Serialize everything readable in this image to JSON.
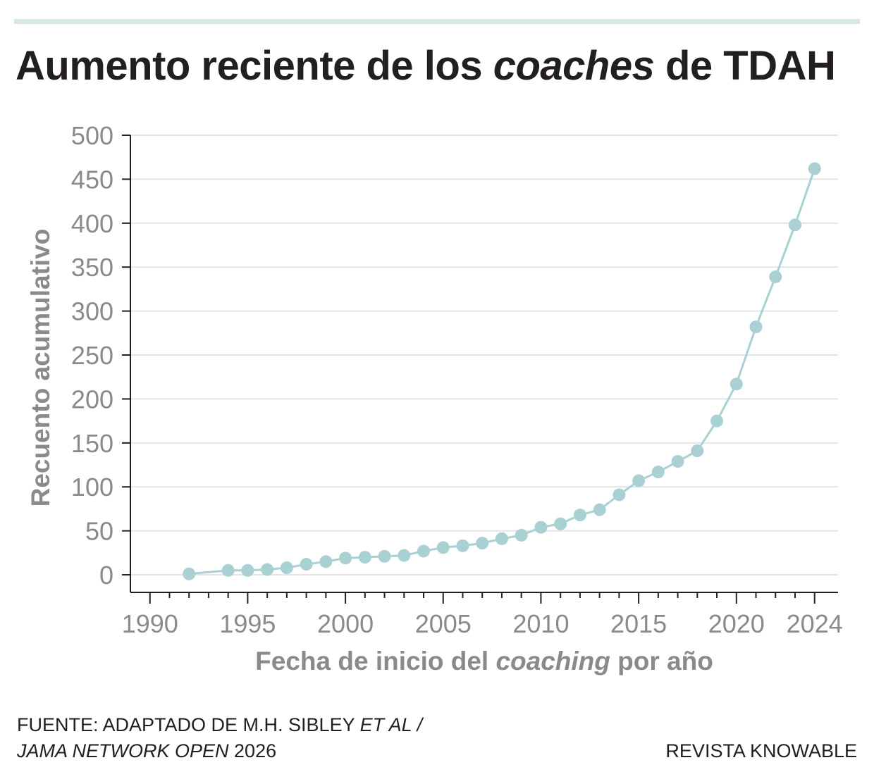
{
  "header": {
    "title_before": "Aumento reciente de los ",
    "title_italic": "coaches",
    "title_after": " de TDAH"
  },
  "footer": {
    "source_line1": "FUENTE: ADAPTADO DE M.H. SIBLEY ",
    "source_line1_italic": "ET AL /",
    "source_line2_italic": "JAMA NETWORK OPEN",
    "source_line2": " 2026",
    "credit": "REVISTA KNOWABLE"
  },
  "chart_data": {
    "type": "line",
    "title": "Aumento reciente de los coaches de TDAH",
    "xlabel_before": "Fecha de inicio del ",
    "xlabel_italic": "coaching",
    "xlabel_after": " por año",
    "ylabel": "Recuento acumulativo",
    "xlim": [
      1989,
      2025.2
    ],
    "ylim": [
      -20,
      500
    ],
    "x_ticks": [
      1990,
      1995,
      2000,
      2005,
      2010,
      2015,
      2020,
      2024
    ],
    "x_minor_ticks": [
      1990,
      1991,
      1992,
      1993,
      1994,
      1995,
      1996,
      1997,
      1998,
      1999,
      2000,
      2001,
      2002,
      2003,
      2004,
      2005,
      2006,
      2007,
      2008,
      2009,
      2010,
      2011,
      2012,
      2013,
      2014,
      2015,
      2016,
      2017,
      2018,
      2019,
      2020,
      2021,
      2022,
      2023,
      2024
    ],
    "y_ticks": [
      0,
      50,
      100,
      150,
      200,
      250,
      300,
      350,
      400,
      450,
      500
    ],
    "grid": true,
    "colors": {
      "line": "#a9d0d3",
      "grid": "#e4e4e4",
      "axis": "#231f20",
      "tick_text": "#8a8a8a"
    },
    "series": [
      {
        "x": [
          1992,
          1994,
          1995,
          1996,
          1997,
          1998,
          1999,
          2000,
          2001,
          2002,
          2003,
          2004,
          2005,
          2006,
          2007,
          2008,
          2009,
          2010,
          2011,
          2012,
          2013,
          2014,
          2015,
          2016,
          2017,
          2018,
          2019,
          2020,
          2021,
          2022,
          2023,
          2024
        ],
        "y": [
          1,
          5,
          5,
          6,
          8,
          12,
          15,
          19,
          20,
          21,
          22,
          27,
          31,
          33,
          36,
          41,
          45,
          54,
          58,
          68,
          74,
          91,
          107,
          117,
          129,
          141,
          175,
          217,
          282,
          339,
          398,
          462
        ]
      }
    ]
  }
}
